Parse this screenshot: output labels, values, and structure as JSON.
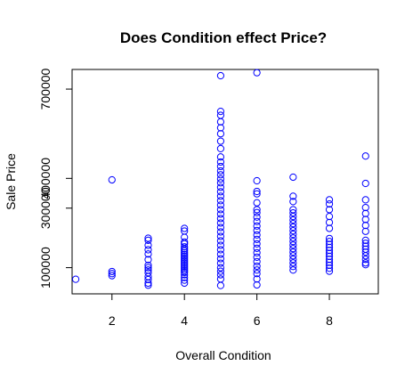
{
  "chart_data": {
    "type": "scatter",
    "title": "Does Condition effect Price?",
    "xlabel": "Overall Condition",
    "ylabel": "Sale Price",
    "xlim": [
      0.9,
      9.35
    ],
    "ylim": [
      12000,
      766000
    ],
    "xticks": [
      2,
      4,
      6,
      8
    ],
    "yticks": [
      100000,
      300000,
      400000,
      700000
    ],
    "ytick_labels": [
      "100000",
      "300000",
      "400000",
      "700000"
    ],
    "grid": false,
    "legend": "none",
    "marker_color": "#0000ff",
    "points": [
      [
        1,
        61000
      ],
      [
        2,
        395000
      ],
      [
        2,
        87000
      ],
      [
        2,
        80000
      ],
      [
        2,
        73000
      ],
      [
        3,
        199000
      ],
      [
        3,
        192000
      ],
      [
        3,
        175000
      ],
      [
        3,
        160000
      ],
      [
        3,
        146000
      ],
      [
        3,
        127000
      ],
      [
        3,
        108000
      ],
      [
        3,
        100000
      ],
      [
        3,
        92000
      ],
      [
        3,
        83000
      ],
      [
        3,
        70000
      ],
      [
        3,
        60000
      ],
      [
        3,
        48000
      ],
      [
        3,
        41000
      ],
      [
        4,
        232000
      ],
      [
        4,
        223000
      ],
      [
        4,
        202000
      ],
      [
        4,
        186000
      ],
      [
        4,
        180000
      ],
      [
        4,
        170000
      ],
      [
        4,
        163000
      ],
      [
        4,
        157000
      ],
      [
        4,
        150000
      ],
      [
        4,
        144000
      ],
      [
        4,
        138000
      ],
      [
        4,
        132000
      ],
      [
        4,
        126000
      ],
      [
        4,
        120000
      ],
      [
        4,
        114000
      ],
      [
        4,
        108000
      ],
      [
        4,
        102000
      ],
      [
        4,
        96000
      ],
      [
        4,
        90000
      ],
      [
        4,
        84000
      ],
      [
        4,
        76000
      ],
      [
        4,
        67000
      ],
      [
        4,
        58000
      ],
      [
        4,
        48000
      ],
      [
        5,
        745000
      ],
      [
        5,
        625000
      ],
      [
        5,
        612000
      ],
      [
        5,
        590000
      ],
      [
        5,
        570000
      ],
      [
        5,
        550000
      ],
      [
        5,
        525000
      ],
      [
        5,
        500000
      ],
      [
        5,
        472000
      ],
      [
        5,
        455000
      ],
      [
        5,
        440000
      ],
      [
        5,
        425000
      ],
      [
        5,
        412000
      ],
      [
        5,
        398000
      ],
      [
        5,
        385000
      ],
      [
        5,
        370000
      ],
      [
        5,
        355000
      ],
      [
        5,
        340000
      ],
      [
        5,
        325000
      ],
      [
        5,
        310000
      ],
      [
        5,
        295000
      ],
      [
        5,
        280000
      ],
      [
        5,
        265000
      ],
      [
        5,
        250000
      ],
      [
        5,
        235000
      ],
      [
        5,
        220000
      ],
      [
        5,
        205000
      ],
      [
        5,
        190000
      ],
      [
        5,
        175000
      ],
      [
        5,
        160000
      ],
      [
        5,
        145000
      ],
      [
        5,
        130000
      ],
      [
        5,
        115000
      ],
      [
        5,
        100000
      ],
      [
        5,
        88000
      ],
      [
        5,
        76000
      ],
      [
        5,
        62000
      ],
      [
        5,
        40000
      ],
      [
        6,
        755000
      ],
      [
        6,
        392000
      ],
      [
        6,
        356000
      ],
      [
        6,
        348000
      ],
      [
        6,
        318000
      ],
      [
        6,
        295000
      ],
      [
        6,
        285000
      ],
      [
        6,
        270000
      ],
      [
        6,
        255000
      ],
      [
        6,
        240000
      ],
      [
        6,
        225000
      ],
      [
        6,
        210000
      ],
      [
        6,
        195000
      ],
      [
        6,
        180000
      ],
      [
        6,
        165000
      ],
      [
        6,
        150000
      ],
      [
        6,
        135000
      ],
      [
        6,
        120000
      ],
      [
        6,
        105000
      ],
      [
        6,
        92000
      ],
      [
        6,
        80000
      ],
      [
        6,
        62000
      ],
      [
        6,
        42000
      ],
      [
        7,
        404000
      ],
      [
        7,
        340000
      ],
      [
        7,
        322000
      ],
      [
        7,
        295000
      ],
      [
        7,
        284000
      ],
      [
        7,
        272000
      ],
      [
        7,
        260000
      ],
      [
        7,
        248000
      ],
      [
        7,
        236000
      ],
      [
        7,
        224000
      ],
      [
        7,
        212000
      ],
      [
        7,
        200000
      ],
      [
        7,
        188000
      ],
      [
        7,
        176000
      ],
      [
        7,
        164000
      ],
      [
        7,
        152000
      ],
      [
        7,
        140000
      ],
      [
        7,
        128000
      ],
      [
        7,
        116000
      ],
      [
        7,
        104000
      ],
      [
        7,
        92000
      ],
      [
        8,
        328000
      ],
      [
        8,
        314000
      ],
      [
        8,
        295000
      ],
      [
        8,
        272000
      ],
      [
        8,
        252000
      ],
      [
        8,
        232000
      ],
      [
        8,
        198000
      ],
      [
        8,
        188000
      ],
      [
        8,
        178000
      ],
      [
        8,
        168000
      ],
      [
        8,
        158000
      ],
      [
        8,
        148000
      ],
      [
        8,
        138000
      ],
      [
        8,
        128000
      ],
      [
        8,
        118000
      ],
      [
        8,
        108000
      ],
      [
        8,
        98000
      ],
      [
        8,
        88000
      ],
      [
        9,
        475000
      ],
      [
        9,
        383000
      ],
      [
        9,
        328000
      ],
      [
        9,
        302000
      ],
      [
        9,
        282000
      ],
      [
        9,
        262000
      ],
      [
        9,
        242000
      ],
      [
        9,
        222000
      ],
      [
        9,
        192000
      ],
      [
        9,
        182000
      ],
      [
        9,
        172000
      ],
      [
        9,
        162000
      ],
      [
        9,
        152000
      ],
      [
        9,
        140000
      ],
      [
        9,
        128000
      ],
      [
        9,
        116000
      ],
      [
        9,
        110000
      ]
    ]
  }
}
